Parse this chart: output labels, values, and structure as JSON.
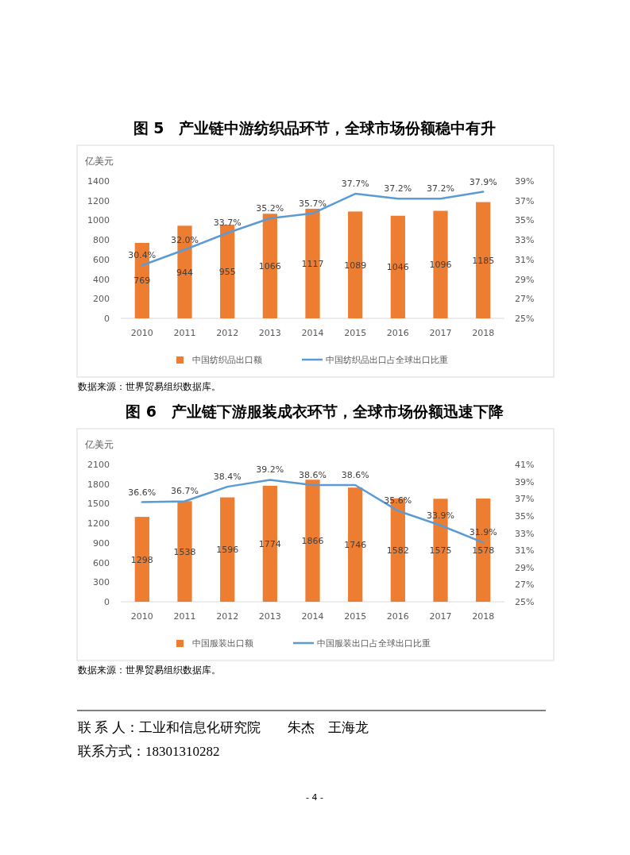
{
  "chart_data": [
    {
      "type": "bar",
      "title": "图 5　产业链中游纺织品环节，全球市场份额稳中有升",
      "ylabel": "亿美元",
      "categories": [
        "2010",
        "2011",
        "2012",
        "2013",
        "2014",
        "2015",
        "2016",
        "2017",
        "2018"
      ],
      "series": [
        {
          "type": "bar",
          "name": "中国纺织品出口额",
          "color": "#ed7d31",
          "values": [
            769,
            944,
            955,
            1066,
            1117,
            1089,
            1046,
            1096,
            1185
          ],
          "value_labels": [
            "769",
            "944",
            "955",
            "1066",
            "1117",
            "1089",
            "1046",
            "1096",
            "1185"
          ]
        },
        {
          "type": "line",
          "axis": "y2",
          "name": "中国纺织品出口占全球出口比重",
          "color": "#5b9bd5",
          "values": [
            30.4,
            32.0,
            33.7,
            35.2,
            35.7,
            37.7,
            37.2,
            37.2,
            37.9
          ],
          "value_labels": [
            "30.4%",
            "32.0%",
            "33.7%",
            "35.2%",
            "35.7%",
            "37.7%",
            "37.2%",
            "37.2%",
            "37.9%"
          ]
        }
      ],
      "ylim": [
        0,
        1400
      ],
      "yticks": [
        0,
        200,
        400,
        600,
        800,
        1000,
        1200,
        1400
      ],
      "y2lim": [
        25,
        39
      ],
      "y2ticks": [
        {
          "value": 25,
          "label": "25%"
        },
        {
          "value": 27,
          "label": "27%"
        },
        {
          "value": 29,
          "label": "29%"
        },
        {
          "value": 31,
          "label": "31%"
        },
        {
          "value": 33,
          "label": "33%"
        },
        {
          "value": 35,
          "label": "35%"
        },
        {
          "value": 37,
          "label": "37%"
        },
        {
          "value": 39,
          "label": "39%"
        }
      ],
      "legend": "bottom",
      "annotations": [
        "数据来源：世界贸易组织数据库。"
      ]
    },
    {
      "type": "bar",
      "title": "图 6　产业链下游服装成衣环节，全球市场份额迅速下降",
      "ylabel": "亿美元",
      "categories": [
        "2010",
        "2011",
        "2012",
        "2013",
        "2014",
        "2015",
        "2016",
        "2017",
        "2018"
      ],
      "series": [
        {
          "type": "bar",
          "name": "中国服装出口额",
          "color": "#ed7d31",
          "values": [
            1298,
            1538,
            1596,
            1774,
            1866,
            1746,
            1582,
            1575,
            1578
          ],
          "value_labels": [
            "1298",
            "1538",
            "1596",
            "1774",
            "1866",
            "1746",
            "1582",
            "1575",
            "1578"
          ]
        },
        {
          "type": "line",
          "axis": "y2",
          "name": "中国服装出口占全球出口比重",
          "color": "#5b9bd5",
          "values": [
            36.6,
            36.7,
            38.4,
            39.2,
            38.6,
            38.6,
            35.6,
            33.9,
            31.9
          ],
          "value_labels": [
            "36.6%",
            "36.7%",
            "38.4%",
            "39.2%",
            "38.6%",
            "38.6%",
            "35.6%",
            "33.9%",
            "31.9%"
          ]
        }
      ],
      "ylim": [
        0,
        2100
      ],
      "yticks": [
        0,
        300,
        600,
        900,
        1200,
        1500,
        1800,
        2100
      ],
      "y2lim": [
        25,
        41
      ],
      "y2ticks": [
        {
          "value": 25,
          "label": "25%"
        },
        {
          "value": 27,
          "label": "27%"
        },
        {
          "value": 29,
          "label": "29%"
        },
        {
          "value": 31,
          "label": "31%"
        },
        {
          "value": 33,
          "label": "33%"
        },
        {
          "value": 35,
          "label": "35%"
        },
        {
          "value": 37,
          "label": "37%"
        },
        {
          "value": 39,
          "label": "39%"
        },
        {
          "value": 41,
          "label": "41%"
        }
      ],
      "legend": "bottom",
      "annotations": [
        "数据来源：世界贸易组织数据库。"
      ]
    },
    {
      "type": "other",
      "annotations": [
        "联 系 人：工业和信息化研究院　　朱杰　王海龙",
        "联系方式：18301310282",
        "- 4 -"
      ]
    }
  ]
}
